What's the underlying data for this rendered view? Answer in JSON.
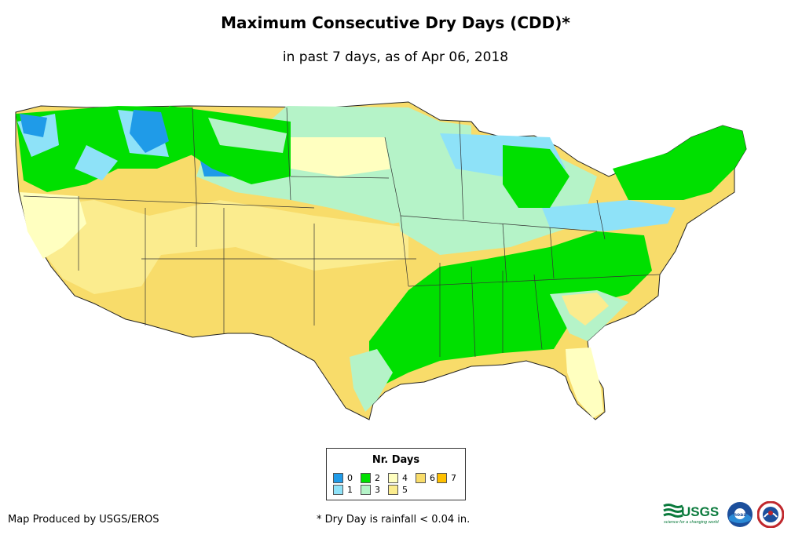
{
  "title": "Maximum Consecutive Dry Days (CDD)*",
  "subtitle": "in past 7 days, as of Apr 06, 2018",
  "legend": {
    "title": "Nr. Days",
    "items": [
      {
        "label": "0",
        "color": "#1f9be8"
      },
      {
        "label": "1",
        "color": "#8ee2f8"
      },
      {
        "label": "2",
        "color": "#00e000"
      },
      {
        "label": "3",
        "color": "#b5f3c8"
      },
      {
        "label": "4",
        "color": "#ffffc0"
      },
      {
        "label": "5",
        "color": "#fbec8e"
      },
      {
        "label": "6",
        "color": "#f8dc6a"
      },
      {
        "label": "7",
        "color": "#ffc000"
      }
    ]
  },
  "footer": {
    "credit": "Map Produced by USGS/EROS",
    "note": "* Dry Day is rainfall < 0.04 in."
  },
  "logos": {
    "usgs_text": "USGS",
    "usgs_tagline": "science for a changing world",
    "noaa_text": "noaa"
  }
}
